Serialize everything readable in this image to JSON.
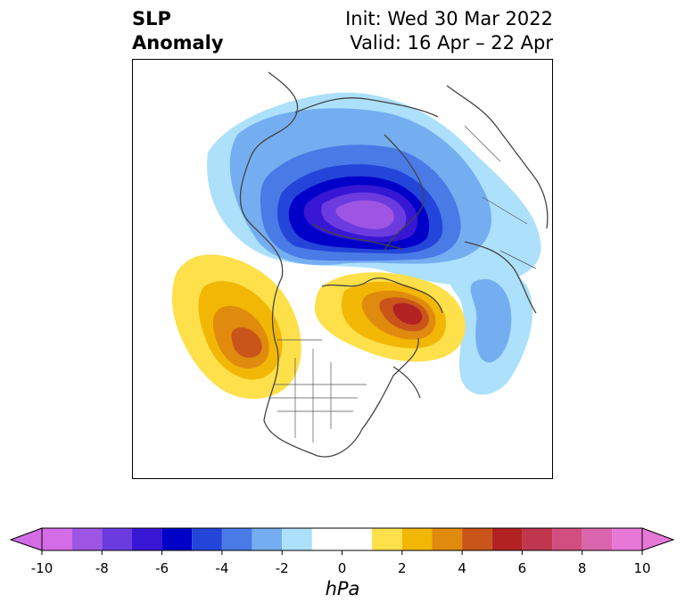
{
  "title": {
    "left_line1": "SLP",
    "left_line2": "Anomaly",
    "right_line1": "Init: Wed 30 Mar 2022",
    "right_line2": "Valid: 16 Apr – 22 Apr"
  },
  "map": {
    "projection": "north polar stereographic",
    "variable": "sea level pressure anomaly",
    "features": [
      {
        "name": "low-anomaly-arctic",
        "sign": "negative",
        "peak_hPa": -8
      },
      {
        "name": "high-anomaly-ne-pacific",
        "sign": "positive",
        "peak_hPa": 5
      },
      {
        "name": "high-anomaly-greenland-baffin",
        "sign": "positive",
        "peak_hPa": 6
      },
      {
        "name": "low-anomaly-north-atlantic",
        "sign": "negative",
        "peak_hPa": -3
      },
      {
        "name": "low-anomaly-north-pacific-ring",
        "sign": "negative",
        "peak_hPa": -2
      }
    ]
  },
  "colorbar": {
    "unit": "hPa",
    "tick_labels": [
      "-10",
      "-8",
      "-6",
      "-4",
      "-2",
      "0",
      "2",
      "4",
      "6",
      "8",
      "10"
    ],
    "bins": [
      {
        "range": "-10 to -9",
        "color": "#d36ce6"
      },
      {
        "range": "-9 to -8",
        "color": "#9f55e3"
      },
      {
        "range": "-8 to -7",
        "color": "#6b3be0"
      },
      {
        "range": "-7 to -6",
        "color": "#3717d4"
      },
      {
        "range": "-6 to -5",
        "color": "#0000c8"
      },
      {
        "range": "-5 to -4",
        "color": "#2445d9"
      },
      {
        "range": "-4 to -3",
        "color": "#4a7ae6"
      },
      {
        "range": "-3 to -2",
        "color": "#75aef0"
      },
      {
        "range": "-2 to -1",
        "color": "#ace0fb"
      },
      {
        "range": "-1 to 1",
        "color": "#ffffff"
      },
      {
        "range": "1 to 2",
        "color": "#fde04a"
      },
      {
        "range": "2 to 3",
        "color": "#f2b705"
      },
      {
        "range": "3 to 4",
        "color": "#e08a0e"
      },
      {
        "range": "4 to 5",
        "color": "#c9551a"
      },
      {
        "range": "5 to 6",
        "color": "#b22222"
      },
      {
        "range": "6 to 7",
        "color": "#c0364f"
      },
      {
        "range": "7 to 8",
        "color": "#d04f80"
      },
      {
        "range": "8 to 9",
        "color": "#d966ac"
      },
      {
        "range": "9 to 10",
        "color": "#e878d8"
      }
    ],
    "extend": "both"
  }
}
